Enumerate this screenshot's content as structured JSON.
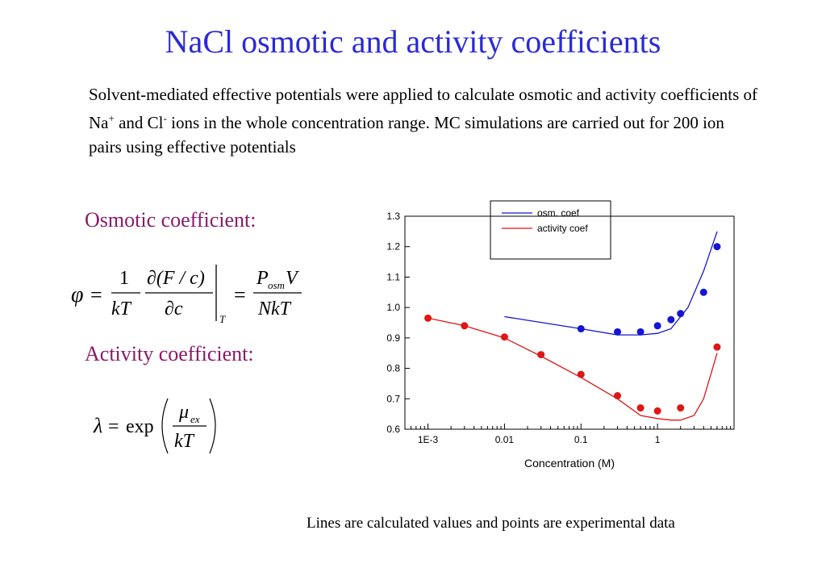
{
  "slide": {
    "title": "NaCl osmotic and activity coefficients",
    "intro_parts": [
      "Solvent-mediated effective potentials were applied to calculate osmotic and activity coefficients of Na",
      "+",
      " and Cl",
      "-",
      " ions in the whole concentration range. MC simulations are carried out for 200 ion pairs using effective potentials"
    ],
    "osmotic_heading": "Osmotic coefficient:",
    "activity_heading": "Activity coefficient:",
    "footnote": "Lines are calculated values and points are experimental data"
  },
  "equations": {
    "osmotic": {
      "phi": "φ",
      "eq": "=",
      "one": "1",
      "kT": "kT",
      "partial_num": "∂(F / c)",
      "partial_den": "∂c",
      "subscript_T": "T",
      "eq2": "=",
      "P": "P",
      "osm": "osm",
      "V": "V",
      "NkT": "NkT"
    },
    "activity": {
      "lambda": "λ",
      "eq": "=",
      "exp": "exp",
      "mu": "μ",
      "ex": "ex",
      "kT": "kT"
    }
  },
  "chart_data": {
    "type": "line",
    "xlabel": "Concentration (M)",
    "ylabel": "",
    "x_scale": "log",
    "xlim": [
      0.0005,
      10
    ],
    "ylim": [
      0.6,
      1.3
    ],
    "x_ticks": [
      {
        "value": 0.001,
        "label": "1E-3"
      },
      {
        "value": 0.01,
        "label": "0.01"
      },
      {
        "value": 0.1,
        "label": "0.1"
      },
      {
        "value": 1,
        "label": "1"
      }
    ],
    "y_ticks": [
      {
        "value": 0.6,
        "label": "0.6"
      },
      {
        "value": 0.7,
        "label": "0.7"
      },
      {
        "value": 0.8,
        "label": "0.8"
      },
      {
        "value": 0.9,
        "label": "0.9"
      },
      {
        "value": 1.0,
        "label": "1.0"
      },
      {
        "value": 1.1,
        "label": "1.1"
      },
      {
        "value": 1.2,
        "label": "1.2"
      },
      {
        "value": 1.3,
        "label": "1.3"
      }
    ],
    "legend_position": "top-right",
    "series": [
      {
        "name": "osm. coef",
        "color": "#1515d6",
        "line": {
          "x": [
            0.01,
            0.1,
            0.3,
            0.6,
            1.0,
            1.5,
            2.5,
            4.0,
            6.0
          ],
          "y": [
            0.97,
            0.93,
            0.91,
            0.91,
            0.915,
            0.93,
            1.0,
            1.12,
            1.25
          ]
        },
        "points": {
          "x": [
            0.1,
            0.3,
            0.6,
            1.0,
            1.5,
            2.0,
            4.0,
            6.0
          ],
          "y": [
            0.93,
            0.92,
            0.92,
            0.94,
            0.96,
            0.98,
            1.05,
            1.2
          ]
        }
      },
      {
        "name": "activity coef",
        "color": "#e01515",
        "line": {
          "x": [
            0.001,
            0.003,
            0.01,
            0.03,
            0.1,
            0.3,
            0.6,
            1.0,
            1.5,
            2.0,
            3.0,
            4.0,
            6.0
          ],
          "y": [
            0.965,
            0.94,
            0.9,
            0.84,
            0.77,
            0.7,
            0.645,
            0.635,
            0.63,
            0.63,
            0.645,
            0.7,
            0.85
          ]
        },
        "points": {
          "x": [
            0.001,
            0.003,
            0.01,
            0.03,
            0.1,
            0.3,
            0.6,
            1.0,
            2.0,
            6.0
          ],
          "y": [
            0.965,
            0.94,
            0.903,
            0.845,
            0.78,
            0.71,
            0.67,
            0.66,
            0.67,
            0.87
          ]
        }
      }
    ]
  }
}
